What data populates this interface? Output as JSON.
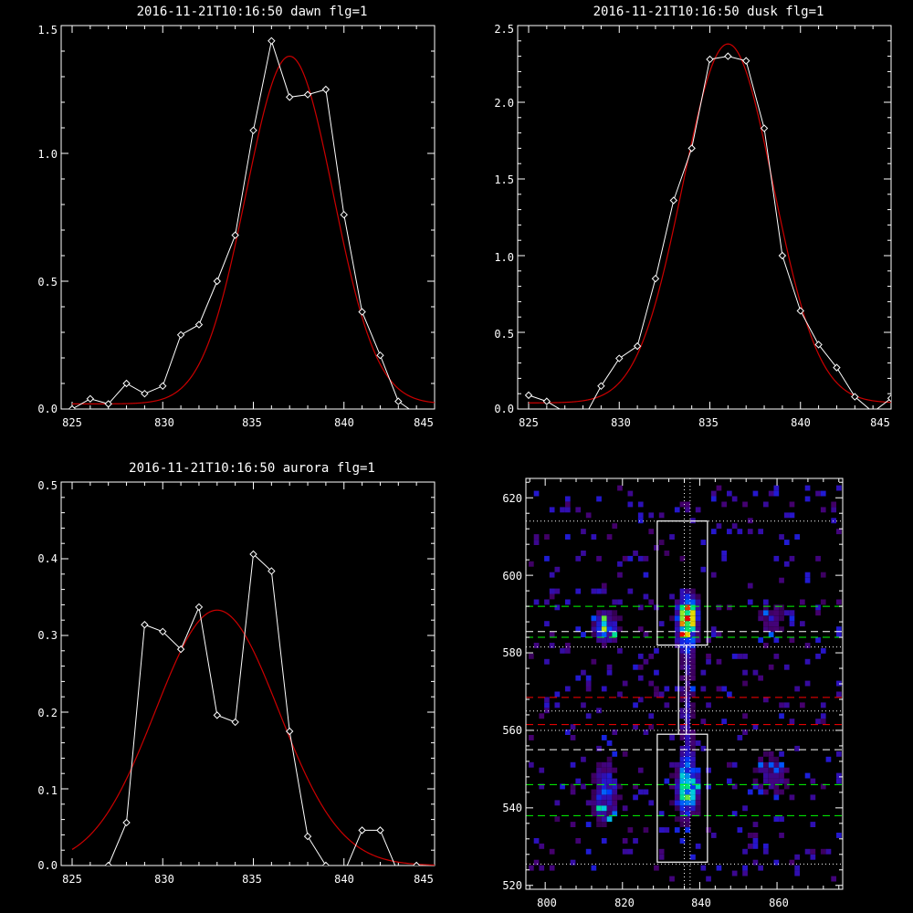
{
  "colors": {
    "background": "#000000",
    "axes": "#ffffff",
    "data_line": "#ffffff",
    "fit_line": "#cc0000",
    "green_dash": "#00ff00",
    "red_dash": "#ff0000",
    "white_dash": "#ffffff"
  },
  "chart_data": [
    {
      "id": "dawn",
      "type": "line",
      "title": "2016-11-21T10:16:50 dawn flg=1",
      "xlim": [
        825,
        845
      ],
      "ylim": [
        0,
        1.5
      ],
      "xticks": [
        825,
        830,
        835,
        840,
        845
      ],
      "xtick_labels": [
        "825",
        "830",
        "835",
        "840",
        "845"
      ],
      "yticks": [
        0,
        0.5,
        1.0,
        1.5
      ],
      "ytick_labels": [
        "0.0",
        "0.5",
        "1.0",
        "1.5"
      ],
      "series": [
        {
          "style": "white-line-diamond-markers",
          "x": [
            825,
            826,
            827,
            828,
            829,
            830,
            831,
            832,
            833,
            834,
            835,
            836,
            837,
            838,
            839,
            840,
            841,
            842,
            843,
            844,
            845
          ],
          "y": [
            0.0,
            0.04,
            0.02,
            0.1,
            0.06,
            0.09,
            0.29,
            0.33,
            0.5,
            0.68,
            1.09,
            1.44,
            1.22,
            1.23,
            1.25,
            0.76,
            0.38,
            0.21,
            0.03,
            -0.02,
            -0.04
          ]
        },
        {
          "style": "red-gaussian-fit",
          "model": "gaussian",
          "amplitude": 1.36,
          "center": 837.0,
          "sigma": 2.4,
          "offset": 0.02
        }
      ]
    },
    {
      "id": "dusk",
      "type": "line",
      "title": "2016-11-21T10:16:50 dusk flg=1",
      "xlim": [
        825,
        845
      ],
      "ylim": [
        0,
        2.5
      ],
      "xticks": [
        825,
        830,
        835,
        840,
        845
      ],
      "xtick_labels": [
        "825",
        "830",
        "835",
        "840",
        "845"
      ],
      "yticks": [
        0,
        0.5,
        1.0,
        1.5,
        2.0,
        2.5
      ],
      "ytick_labels": [
        "0.0",
        "0.5",
        "1.0",
        "1.5",
        "2.0",
        "2.5"
      ],
      "series": [
        {
          "style": "white-line-diamond-markers",
          "x": [
            825,
            826,
            827,
            828,
            829,
            830,
            831,
            832,
            833,
            834,
            835,
            836,
            837,
            838,
            839,
            840,
            841,
            842,
            843,
            844,
            845
          ],
          "y": [
            0.09,
            0.05,
            -0.02,
            -0.07,
            0.15,
            0.33,
            0.41,
            0.85,
            1.36,
            1.7,
            2.28,
            2.3,
            2.27,
            1.83,
            1.0,
            0.64,
            0.42,
            0.27,
            0.08,
            -0.02,
            0.07
          ]
        },
        {
          "style": "red-gaussian-fit",
          "model": "gaussian",
          "amplitude": 2.34,
          "center": 836.0,
          "sigma": 2.5,
          "offset": 0.04
        }
      ]
    },
    {
      "id": "aurora",
      "type": "line",
      "title": "2016-11-21T10:16:50 aurora flg=1",
      "xlim": [
        825,
        845
      ],
      "ylim": [
        0,
        0.5
      ],
      "xticks": [
        825,
        830,
        835,
        840,
        845
      ],
      "xtick_labels": [
        "825",
        "830",
        "835",
        "840",
        "845"
      ],
      "yticks": [
        0,
        0.1,
        0.2,
        0.3,
        0.4,
        0.5
      ],
      "ytick_labels": [
        "0.0",
        "0.1",
        "0.2",
        "0.3",
        "0.4",
        "0.5"
      ],
      "series": [
        {
          "style": "white-line-diamond-markers",
          "x": [
            825,
            826,
            827,
            828,
            829,
            830,
            831,
            832,
            833,
            834,
            835,
            836,
            837,
            838,
            839,
            840,
            841,
            842,
            843,
            844,
            845
          ],
          "y": [
            -0.04,
            -0.01,
            0.0,
            0.056,
            0.314,
            0.305,
            0.282,
            0.337,
            0.196,
            0.187,
            0.406,
            0.384,
            0.175,
            0.038,
            0.0,
            -0.01,
            0.046,
            0.046,
            -0.01,
            0.0,
            -0.02
          ]
        },
        {
          "style": "red-gaussian-fit",
          "model": "gaussian",
          "amplitude": 0.333,
          "center": 833.0,
          "sigma": 3.4,
          "offset": 0.0
        }
      ]
    },
    {
      "id": "image",
      "type": "heatmap",
      "title": "",
      "xlim": [
        795,
        877
      ],
      "ylim": [
        519,
        625
      ],
      "xticks": [
        800,
        820,
        840,
        860
      ],
      "xtick_labels": [
        "800",
        "820",
        "840",
        "860"
      ],
      "yticks": [
        520,
        540,
        560,
        580,
        600,
        620
      ],
      "ytick_labels": [
        "520",
        "540",
        "560",
        "580",
        "600",
        "620"
      ],
      "colormap": "rainbow",
      "hotspots": [
        {
          "x": 836,
          "y": 587,
          "sx": 2.0,
          "sy": 4.5,
          "amp": 0.85
        },
        {
          "x": 837,
          "y": 591,
          "sx": 1.5,
          "sy": 2.0,
          "amp": 0.5
        },
        {
          "x": 836,
          "y": 544,
          "sx": 2.2,
          "sy": 5.0,
          "amp": 0.7
        },
        {
          "x": 836,
          "y": 565,
          "sx": 1.5,
          "sy": 14.0,
          "amp": 0.3
        },
        {
          "x": 815,
          "y": 586,
          "sx": 2.5,
          "sy": 3.0,
          "amp": 0.55
        },
        {
          "x": 815,
          "y": 543,
          "sx": 2.5,
          "sy": 6.0,
          "amp": 0.45
        },
        {
          "x": 858,
          "y": 588,
          "sx": 3.0,
          "sy": 3.0,
          "amp": 0.3
        },
        {
          "x": 858,
          "y": 548,
          "sx": 4.0,
          "sy": 5.0,
          "amp": 0.28
        }
      ],
      "boxes": [
        {
          "x0": 829,
          "x1": 842,
          "y0": 582,
          "y1": 614
        },
        {
          "x0": 829,
          "x1": 842,
          "y0": 526,
          "y1": 559
        }
      ],
      "connector": {
        "x0": 834.5,
        "x1": 836.5,
        "y0": 559,
        "y1": 582
      },
      "hlines": [
        {
          "y": 614,
          "style": "white-dotted"
        },
        {
          "y": 592,
          "style": "green-dashed"
        },
        {
          "y": 585.5,
          "style": "white-dashed"
        },
        {
          "y": 584,
          "style": "green-dashed"
        },
        {
          "y": 581.5,
          "style": "white-dotted"
        },
        {
          "y": 568.5,
          "style": "red-dashed"
        },
        {
          "y": 565,
          "style": "white-dotted"
        },
        {
          "y": 561.5,
          "style": "red-dashed"
        },
        {
          "y": 560,
          "style": "white-dotted"
        },
        {
          "y": 555,
          "style": "white-dashed"
        },
        {
          "y": 546,
          "style": "green-dashed"
        },
        {
          "y": 538,
          "style": "green-dashed"
        },
        {
          "y": 525.5,
          "style": "white-dotted"
        }
      ],
      "vlines": [
        {
          "x": 836,
          "style": "white-dotted"
        },
        {
          "x": 837.5,
          "style": "white-dotted"
        }
      ]
    }
  ]
}
